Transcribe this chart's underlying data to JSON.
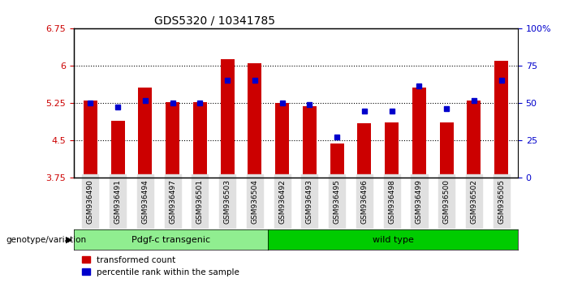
{
  "title": "GDS5320 / 10341785",
  "samples": [
    "GSM936490",
    "GSM936491",
    "GSM936494",
    "GSM936497",
    "GSM936501",
    "GSM936503",
    "GSM936504",
    "GSM936492",
    "GSM936493",
    "GSM936495",
    "GSM936496",
    "GSM936498",
    "GSM936499",
    "GSM936500",
    "GSM936502",
    "GSM936505"
  ],
  "red_values": [
    5.3,
    4.9,
    5.57,
    5.28,
    5.28,
    6.13,
    6.05,
    5.25,
    5.2,
    4.45,
    4.85,
    4.87,
    5.57,
    4.87,
    5.3,
    6.1
  ],
  "blue_values": [
    5.25,
    5.17,
    5.3,
    5.25,
    5.25,
    5.72,
    5.72,
    5.25,
    5.22,
    4.57,
    5.1,
    5.1,
    5.6,
    5.15,
    5.3,
    5.72
  ],
  "blue_percentiles": [
    50,
    40,
    52,
    50,
    50,
    70,
    70,
    50,
    46,
    17,
    37,
    37,
    63,
    38,
    52,
    70
  ],
  "ymin": 3.75,
  "ymax": 6.75,
  "yticks": [
    3.75,
    4.5,
    5.25,
    6.0,
    6.75
  ],
  "ytick_labels": [
    "3.75",
    "4.5",
    "5.25",
    "6",
    "6.75"
  ],
  "right_yticks": [
    0,
    25,
    50,
    75,
    100
  ],
  "right_ytick_labels": [
    "0",
    "25",
    "50",
    "75",
    "100%"
  ],
  "group1_label": "Pdgf-c transgenic",
  "group2_label": "wild type",
  "group1_count": 7,
  "group2_count": 9,
  "bar_color": "#cc0000",
  "dot_color": "#0000cc",
  "group1_bg": "#90ee90",
  "group2_bg": "#00cc00",
  "legend_red": "transformed count",
  "legend_blue": "percentile rank within the sample",
  "bar_width": 0.5,
  "genotype_label": "genotype/variation"
}
